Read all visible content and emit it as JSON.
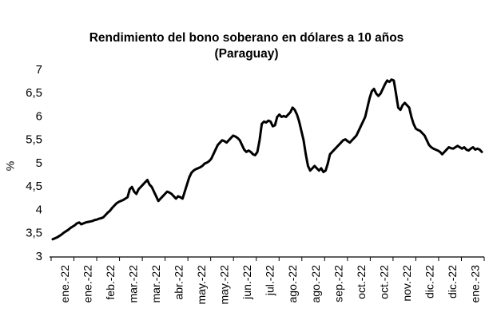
{
  "chart_data": {
    "type": "line",
    "title": "Rendimiento del bono soberano en dólares a 10 años",
    "subtitle": "(Paraguay)",
    "xlabel": "",
    "ylabel": "%",
    "ylim": [
      3,
      7
    ],
    "yticks": [
      "3",
      "3,5",
      "4",
      "4,5",
      "5",
      "5,5",
      "6",
      "6,5",
      "7"
    ],
    "x_tick_labels": [
      "ene.-22",
      "ene.-22",
      "feb.-22",
      "mar.-22",
      "mar.-22",
      "abr.-22",
      "may.-22",
      "may.-22",
      "jun.-22",
      "jul.-22",
      "ago.-22",
      "ago.-22",
      "sep.-22",
      "oct.-22",
      "oct.-22",
      "nov.-22",
      "dic.-22",
      "dic.-22",
      "ene.-23"
    ],
    "grid": false,
    "legend": "none",
    "line_color": "#000000",
    "series": [
      {
        "values": [
          3.38,
          3.4,
          3.42,
          3.45,
          3.48,
          3.52,
          3.55,
          3.58,
          3.62,
          3.65,
          3.68,
          3.72,
          3.74,
          3.7,
          3.72,
          3.74,
          3.75,
          3.76,
          3.77,
          3.79,
          3.8,
          3.82,
          3.83,
          3.85,
          3.9,
          3.95,
          3.99,
          4.05,
          4.1,
          4.15,
          4.18,
          4.2,
          4.22,
          4.25,
          4.28,
          4.45,
          4.5,
          4.4,
          4.35,
          4.45,
          4.5,
          4.55,
          4.6,
          4.65,
          4.55,
          4.5,
          4.4,
          4.3,
          4.2,
          4.25,
          4.3,
          4.35,
          4.4,
          4.38,
          4.35,
          4.3,
          4.25,
          4.3,
          4.28,
          4.25,
          4.4,
          4.55,
          4.7,
          4.8,
          4.85,
          4.88,
          4.9,
          4.92,
          4.95,
          5.0,
          5.02,
          5.05,
          5.1,
          5.2,
          5.3,
          5.4,
          5.45,
          5.5,
          5.48,
          5.45,
          5.5,
          5.55,
          5.6,
          5.58,
          5.55,
          5.5,
          5.4,
          5.3,
          5.25,
          5.28,
          5.25,
          5.2,
          5.18,
          5.25,
          5.5,
          5.85,
          5.9,
          5.88,
          5.92,
          5.9,
          5.8,
          5.82,
          6.0,
          6.05,
          6.0,
          6.02,
          6.0,
          6.05,
          6.1,
          6.2,
          6.15,
          6.05,
          5.9,
          5.7,
          5.5,
          5.2,
          4.95,
          4.85,
          4.9,
          4.95,
          4.9,
          4.85,
          4.9,
          4.82,
          4.85,
          5.0,
          5.2,
          5.25,
          5.3,
          5.35,
          5.4,
          5.45,
          5.5,
          5.52,
          5.48,
          5.45,
          5.5,
          5.55,
          5.6,
          5.7,
          5.8,
          5.9,
          6.0,
          6.2,
          6.4,
          6.55,
          6.6,
          6.5,
          6.45,
          6.5,
          6.6,
          6.7,
          6.78,
          6.75,
          6.8,
          6.78,
          6.5,
          6.2,
          6.15,
          6.25,
          6.3,
          6.25,
          6.2,
          6.0,
          5.85,
          5.75,
          5.72,
          5.7,
          5.65,
          5.6,
          5.5,
          5.4,
          5.35,
          5.32,
          5.3,
          5.28,
          5.25,
          5.2,
          5.25,
          5.3,
          5.35,
          5.33,
          5.32,
          5.35,
          5.38,
          5.35,
          5.32,
          5.35,
          5.3,
          5.28,
          5.32,
          5.35,
          5.3,
          5.32,
          5.3,
          5.25
        ]
      }
    ]
  }
}
